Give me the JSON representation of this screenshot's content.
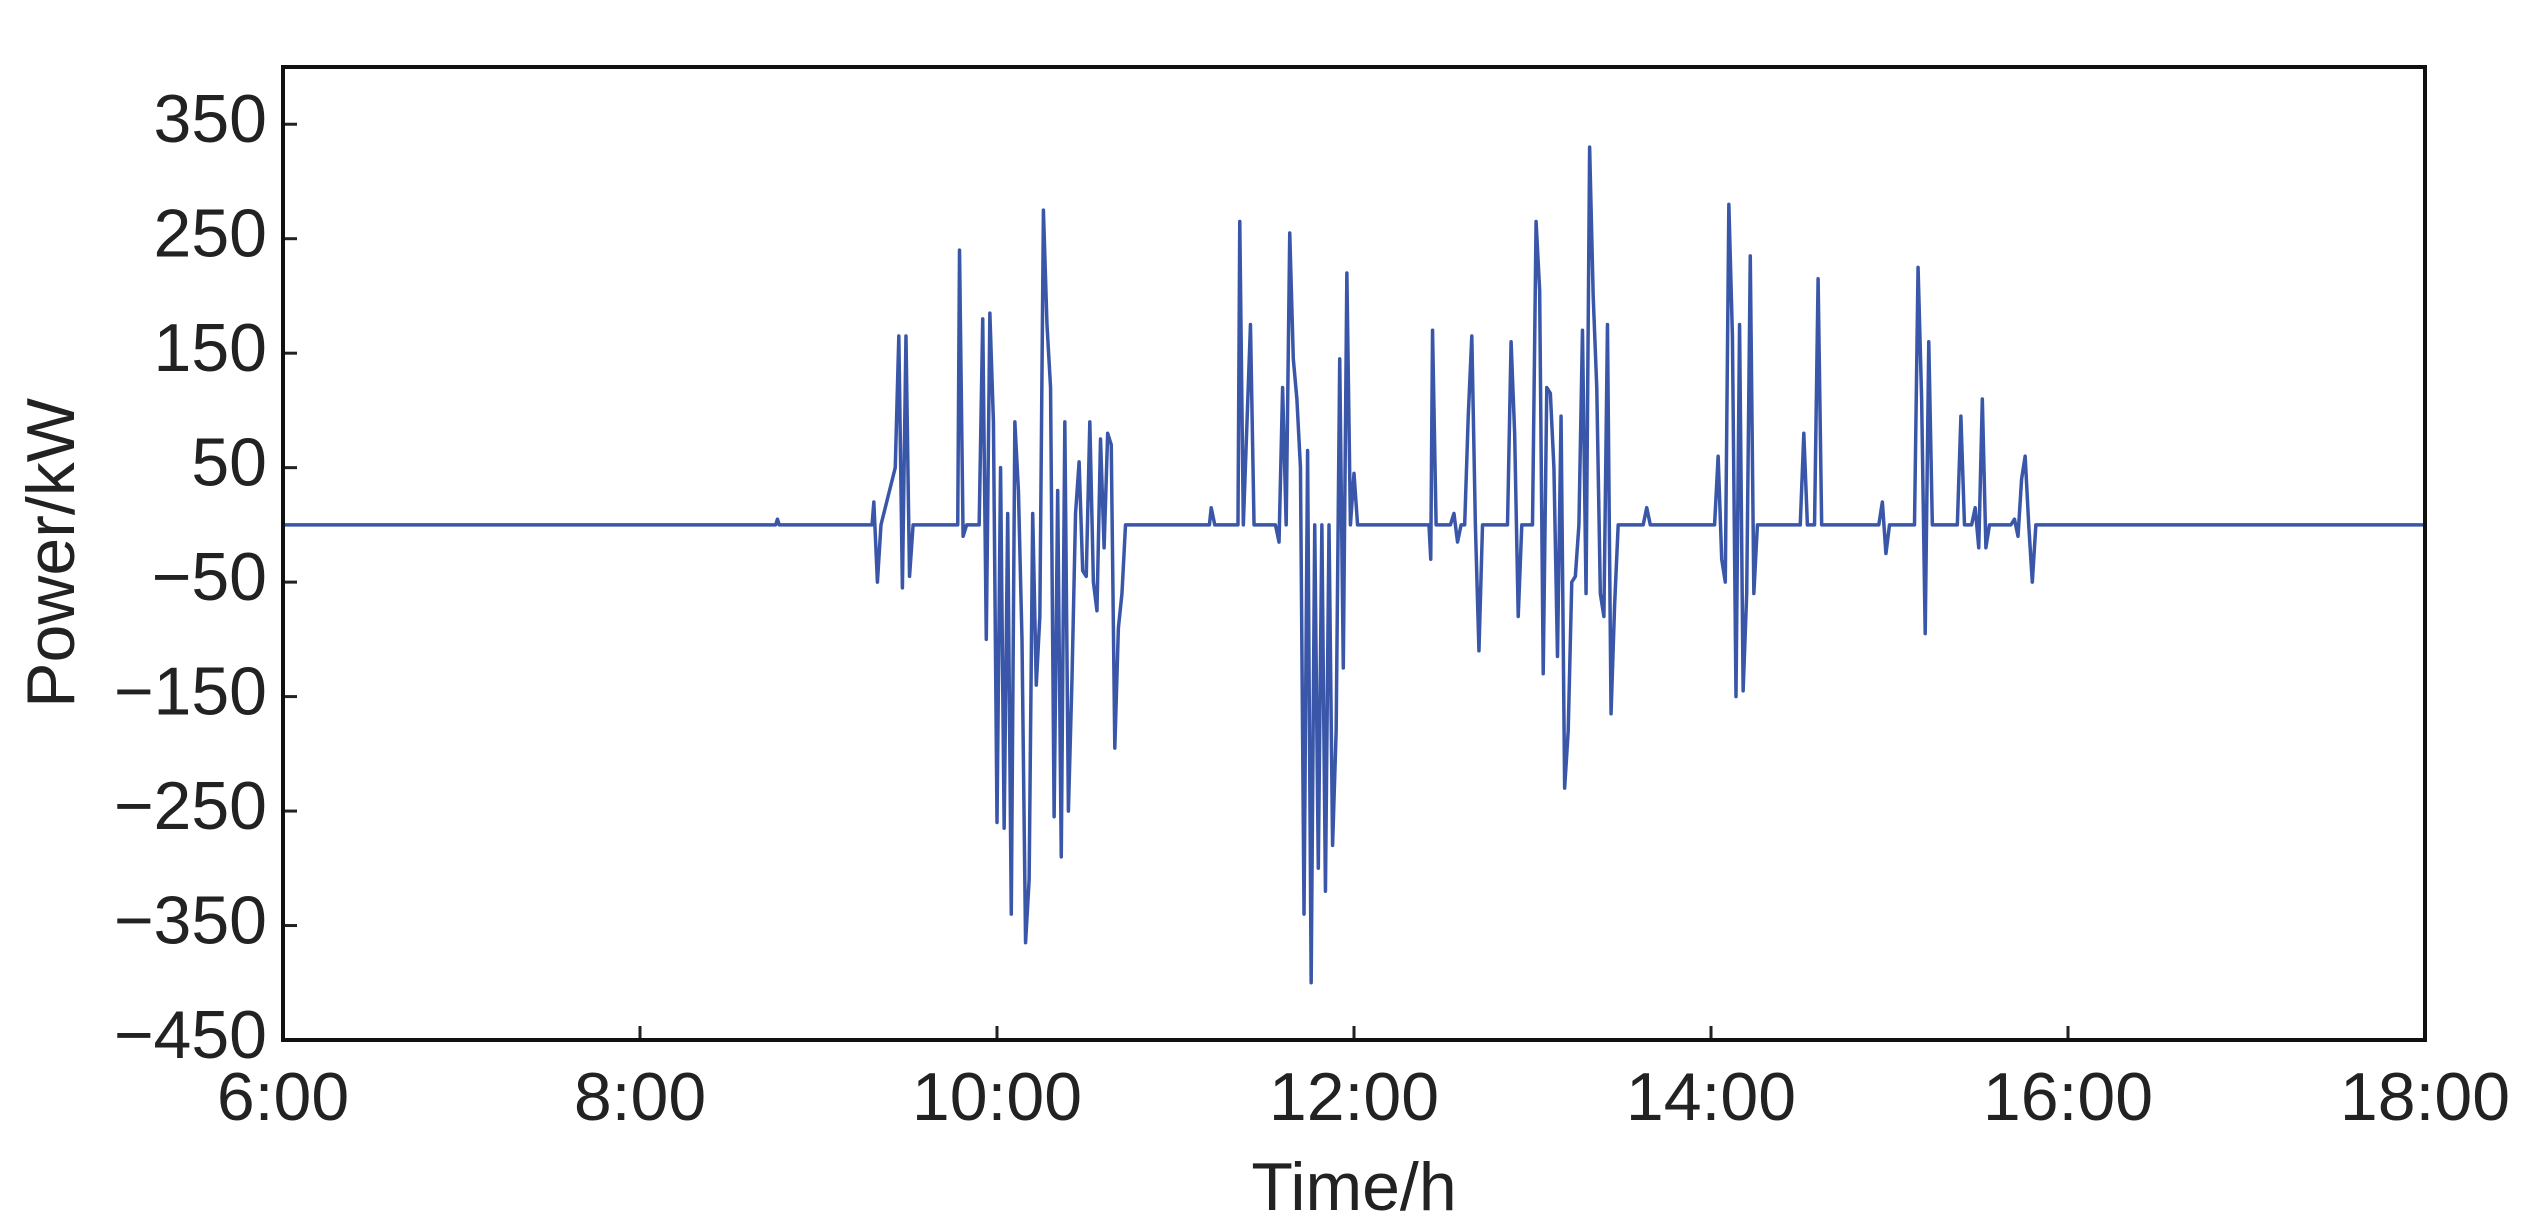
{
  "chart_data": {
    "type": "line",
    "x_label": "Time/h",
    "y_label": "Power/kW",
    "color": "#3a56a8",
    "grid": false,
    "xlim": [
      6,
      18
    ],
    "xticks": [
      {
        "value": 6,
        "label": "6:00"
      },
      {
        "value": 8,
        "label": "8:00"
      },
      {
        "value": 10,
        "label": "10:00"
      },
      {
        "value": 12,
        "label": "12:00"
      },
      {
        "value": 14,
        "label": "14:00"
      },
      {
        "value": 16,
        "label": "16:00"
      },
      {
        "value": 18,
        "label": "18:00"
      }
    ],
    "ylim": [
      -450,
      400
    ],
    "yticks": [
      {
        "value": -450,
        "label": "−450"
      },
      {
        "value": -350,
        "label": "−350"
      },
      {
        "value": -250,
        "label": "−250"
      },
      {
        "value": -150,
        "label": "−150"
      },
      {
        "value": -50,
        "label": "−50"
      },
      50,
      150,
      250,
      350
    ],
    "x": [
      6,
      8.76,
      8.77,
      8.78,
      9.3,
      9.31,
      9.33,
      9.35,
      9.43,
      9.45,
      9.47,
      9.49,
      9.51,
      9.53,
      9.78,
      9.79,
      9.81,
      9.83,
      9.9,
      9.92,
      9.94,
      9.96,
      9.98,
      10,
      10.02,
      10.04,
      10.06,
      10.08,
      10.1,
      10.12,
      10.14,
      10.16,
      10.18,
      10.2,
      10.22,
      10.24,
      10.26,
      10.28,
      10.3,
      10.32,
      10.34,
      10.36,
      10.38,
      10.4,
      10.42,
      10.44,
      10.46,
      10.48,
      10.5,
      10.52,
      10.54,
      10.56,
      10.58,
      10.6,
      10.62,
      10.64,
      10.66,
      10.68,
      10.7,
      10.72,
      11.19,
      11.2,
      11.22,
      11.35,
      11.36,
      11.38,
      11.42,
      11.44,
      11.56,
      11.58,
      11.6,
      11.62,
      11.64,
      11.66,
      11.68,
      11.7,
      11.72,
      11.74,
      11.76,
      11.78,
      11.8,
      11.82,
      11.84,
      11.86,
      11.88,
      11.9,
      11.92,
      11.94,
      11.96,
      11.98,
      12,
      12.02,
      12.42,
      12.43,
      12.44,
      12.46,
      12.54,
      12.56,
      12.58,
      12.6,
      12.62,
      12.64,
      12.66,
      12.68,
      12.7,
      12.72,
      12.86,
      12.88,
      12.9,
      12.92,
      12.94,
      13,
      13.02,
      13.04,
      13.06,
      13.08,
      13.1,
      13.12,
      13.14,
      13.16,
      13.18,
      13.2,
      13.22,
      13.24,
      13.26,
      13.28,
      13.3,
      13.32,
      13.34,
      13.36,
      13.38,
      13.4,
      13.42,
      13.44,
      13.46,
      13.48,
      13.62,
      13.64,
      13.66,
      14.02,
      14.04,
      14.06,
      14.08,
      14.1,
      14.12,
      14.14,
      14.16,
      14.18,
      14.2,
      14.22,
      14.24,
      14.26,
      14.5,
      14.52,
      14.54,
      14.58,
      14.6,
      14.62,
      14.94,
      14.96,
      14.98,
      15,
      15.14,
      15.16,
      15.18,
      15.2,
      15.22,
      15.24,
      15.38,
      15.4,
      15.42,
      15.46,
      15.48,
      15.5,
      15.52,
      15.54,
      15.56,
      15.68,
      15.7,
      15.72,
      15.74,
      15.76,
      15.78,
      15.8,
      15.82,
      18
    ],
    "values": [
      0,
      0,
      5,
      0,
      0,
      20,
      -50,
      0,
      50,
      165,
      -55,
      165,
      -45,
      0,
      0,
      240,
      -10,
      0,
      0,
      180,
      -100,
      185,
      90,
      -260,
      50,
      -265,
      10,
      -340,
      90,
      30,
      -100,
      -365,
      -310,
      10,
      -140,
      -80,
      275,
      175,
      120,
      -255,
      30,
      -290,
      90,
      -250,
      -135,
      10,
      55,
      -40,
      -45,
      90,
      -50,
      -75,
      75,
      -20,
      80,
      70,
      -195,
      -90,
      -60,
      0,
      0,
      15,
      0,
      0,
      265,
      0,
      175,
      0,
      0,
      -15,
      120,
      0,
      255,
      145,
      110,
      50,
      -340,
      65,
      -400,
      0,
      -300,
      0,
      -320,
      0,
      -280,
      -180,
      145,
      -125,
      220,
      0,
      45,
      0,
      0,
      -30,
      170,
      0,
      0,
      10,
      -15,
      0,
      0,
      95,
      165,
      0,
      -110,
      0,
      0,
      160,
      80,
      -80,
      0,
      0,
      265,
      205,
      -130,
      120,
      115,
      50,
      -115,
      95,
      -230,
      -180,
      -50,
      -45,
      0,
      170,
      -60,
      330,
      200,
      120,
      -60,
      -80,
      175,
      -165,
      -70,
      0,
      0,
      15,
      0,
      0,
      60,
      -30,
      -50,
      280,
      165,
      -150,
      175,
      -145,
      -60,
      235,
      -60,
      0,
      0,
      80,
      0,
      0,
      215,
      0,
      0,
      20,
      -25,
      0,
      0,
      225,
      110,
      -95,
      160,
      0,
      0,
      95,
      0,
      0,
      15,
      -20,
      110,
      -20,
      0,
      0,
      5,
      -10,
      40,
      60,
      0,
      -50,
      0,
      0
    ]
  }
}
